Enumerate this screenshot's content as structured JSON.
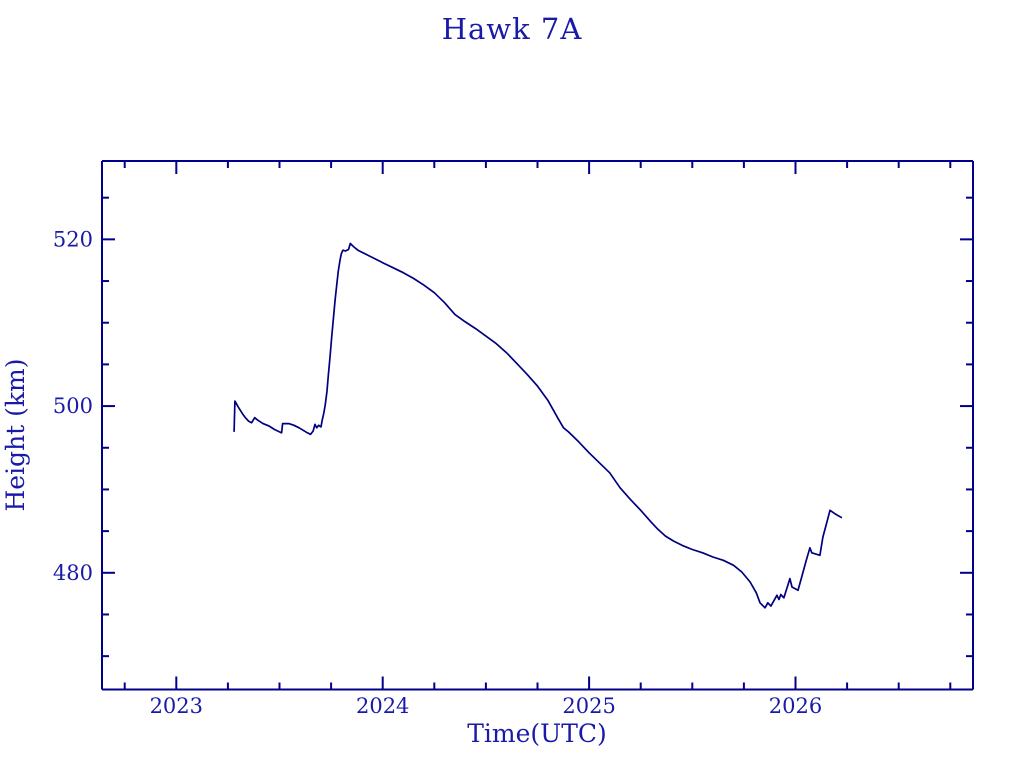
{
  "window": {
    "background_color": "#ffffff"
  },
  "chart_data": {
    "type": "line",
    "title": "Hawk 7A",
    "xlabel": "Time(UTC)",
    "ylabel": "Height (km)",
    "xlim": [
      2022.64,
      2026.86
    ],
    "ylim": [
      466.0,
      529.4
    ],
    "x_major_ticks": [
      2023,
      2024,
      2025,
      2026
    ],
    "x_tick_labels": [
      "2023",
      "2024",
      "2025",
      "2026"
    ],
    "x_minor_step": 0.25,
    "y_major_ticks": [
      480,
      500,
      520
    ],
    "y_tick_labels": [
      "480",
      "500",
      "520"
    ],
    "y_minor_step": 5,
    "grid": false,
    "legend": "none",
    "line_color": "#000080",
    "text_color": "#1a1aa8",
    "frame_color": "#00008b",
    "series": [
      {
        "name": "height-km",
        "points": [
          [
            2023.28,
            496.9
          ],
          [
            2023.284,
            500.6
          ],
          [
            2023.3,
            499.9
          ],
          [
            2023.32,
            499.1
          ],
          [
            2023.335,
            498.6
          ],
          [
            2023.35,
            498.2
          ],
          [
            2023.365,
            498.0
          ],
          [
            2023.38,
            498.6
          ],
          [
            2023.395,
            498.3
          ],
          [
            2023.42,
            497.9
          ],
          [
            2023.45,
            497.6
          ],
          [
            2023.475,
            497.2
          ],
          [
            2023.5,
            496.9
          ],
          [
            2023.51,
            496.8
          ],
          [
            2023.515,
            497.9
          ],
          [
            2023.545,
            497.9
          ],
          [
            2023.57,
            497.7
          ],
          [
            2023.595,
            497.4
          ],
          [
            2023.615,
            497.1
          ],
          [
            2023.635,
            496.8
          ],
          [
            2023.65,
            496.6
          ],
          [
            2023.663,
            497.0
          ],
          [
            2023.672,
            497.8
          ],
          [
            2023.68,
            497.4
          ],
          [
            2023.69,
            497.7
          ],
          [
            2023.701,
            497.5
          ],
          [
            2023.707,
            498.3
          ],
          [
            2023.715,
            499.2
          ],
          [
            2023.722,
            500.2
          ],
          [
            2023.73,
            501.8
          ],
          [
            2023.737,
            503.8
          ],
          [
            2023.745,
            506.0
          ],
          [
            2023.753,
            508.3
          ],
          [
            2023.761,
            510.5
          ],
          [
            2023.769,
            512.6
          ],
          [
            2023.777,
            514.5
          ],
          [
            2023.785,
            516.2
          ],
          [
            2023.793,
            517.5
          ],
          [
            2023.8,
            518.3
          ],
          [
            2023.807,
            518.7
          ],
          [
            2023.82,
            518.6
          ],
          [
            2023.835,
            518.8
          ],
          [
            2023.843,
            519.5
          ],
          [
            2023.86,
            519.1
          ],
          [
            2023.88,
            518.7
          ],
          [
            2023.92,
            518.2
          ],
          [
            2023.96,
            517.7
          ],
          [
            2024.0,
            517.2
          ],
          [
            2024.05,
            516.6
          ],
          [
            2024.1,
            516.0
          ],
          [
            2024.15,
            515.3
          ],
          [
            2024.2,
            514.5
          ],
          [
            2024.25,
            513.6
          ],
          [
            2024.3,
            512.4
          ],
          [
            2024.35,
            511.0
          ],
          [
            2024.4,
            510.1
          ],
          [
            2024.45,
            509.3
          ],
          [
            2024.5,
            508.4
          ],
          [
            2024.55,
            507.5
          ],
          [
            2024.6,
            506.4
          ],
          [
            2024.65,
            505.1
          ],
          [
            2024.7,
            503.8
          ],
          [
            2024.75,
            502.4
          ],
          [
            2024.8,
            500.7
          ],
          [
            2024.85,
            498.5
          ],
          [
            2024.876,
            497.4
          ],
          [
            2024.9,
            496.9
          ],
          [
            2024.95,
            495.7
          ],
          [
            2025.0,
            494.4
          ],
          [
            2025.05,
            493.2
          ],
          [
            2025.1,
            492.0
          ],
          [
            2025.15,
            490.2
          ],
          [
            2025.2,
            488.8
          ],
          [
            2025.25,
            487.5
          ],
          [
            2025.3,
            486.1
          ],
          [
            2025.33,
            485.3
          ],
          [
            2025.37,
            484.4
          ],
          [
            2025.41,
            483.8
          ],
          [
            2025.45,
            483.3
          ],
          [
            2025.5,
            482.8
          ],
          [
            2025.55,
            482.4
          ],
          [
            2025.6,
            481.9
          ],
          [
            2025.65,
            481.5
          ],
          [
            2025.7,
            480.9
          ],
          [
            2025.74,
            480.1
          ],
          [
            2025.78,
            478.9
          ],
          [
            2025.81,
            477.6
          ],
          [
            2025.828,
            476.4
          ],
          [
            2025.852,
            475.8
          ],
          [
            2025.866,
            476.4
          ],
          [
            2025.881,
            476.0
          ],
          [
            2025.91,
            477.3
          ],
          [
            2025.92,
            476.8
          ],
          [
            2025.929,
            477.4
          ],
          [
            2025.944,
            477.0
          ],
          [
            2025.973,
            479.3
          ],
          [
            2025.983,
            478.3
          ],
          [
            2026.012,
            477.9
          ],
          [
            2026.03,
            479.5
          ],
          [
            2026.05,
            481.3
          ],
          [
            2026.07,
            483.0
          ],
          [
            2026.079,
            482.4
          ],
          [
            2026.118,
            482.1
          ],
          [
            2026.133,
            484.3
          ],
          [
            2026.15,
            485.9
          ],
          [
            2026.167,
            487.5
          ],
          [
            2026.19,
            487.1
          ],
          [
            2026.225,
            486.6
          ]
        ]
      }
    ]
  }
}
